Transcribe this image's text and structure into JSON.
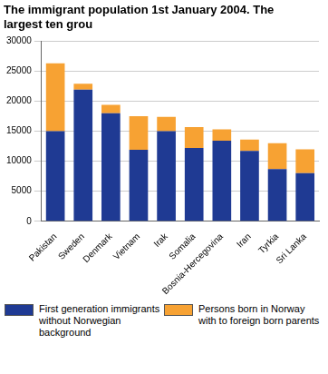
{
  "chart_data": {
    "type": "bar",
    "stacked": true,
    "title": "The immigrant population 1st January 2004. The largest ten grou",
    "categories": [
      "Pakistan",
      "Sweden",
      "Denmark",
      "Vietnam",
      "Irak",
      "Somalia",
      "Bosnia-Hercegovina",
      "Iran",
      "Tyrkia",
      "Sri Lanka"
    ],
    "series": [
      {
        "name": "First generation immigrants without Norwegian background",
        "color": "#1f3a93",
        "values": [
          15000,
          21900,
          18000,
          11900,
          15000,
          12200,
          13400,
          11700,
          8700,
          8000
        ]
      },
      {
        "name": "Persons born in Norway with to foreign born parents",
        "color": "#f7a233",
        "values": [
          11300,
          1000,
          1400,
          5600,
          2400,
          3500,
          1900,
          1900,
          4300,
          4000
        ]
      }
    ],
    "ylim": [
      0,
      30000
    ],
    "yticks": [
      0,
      5000,
      10000,
      15000,
      20000,
      25000,
      30000
    ],
    "grid": true,
    "legend": "bottom"
  }
}
